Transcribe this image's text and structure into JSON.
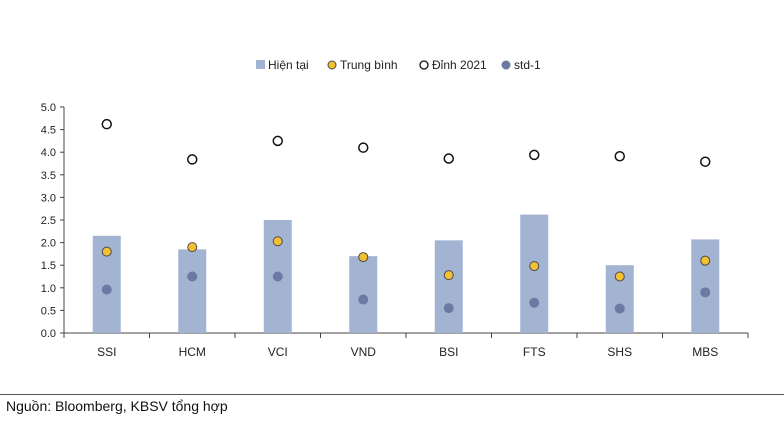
{
  "chart_data": {
    "type": "bar",
    "title": "",
    "xlabel": "",
    "ylabel": "",
    "ylim": [
      0,
      5
    ],
    "yticks": [
      "5.0",
      "4.5",
      "4.0",
      "3.5",
      "3.0",
      "2.5",
      "2.0",
      "1.5",
      "1.0",
      "0.5",
      "0.0"
    ],
    "categories": [
      "SSI",
      "HCM",
      "VCI",
      "VND",
      "BSI",
      "FTS",
      "SHS",
      "MBS"
    ],
    "legend_position": "top-center",
    "series": [
      {
        "name": "Hiện tại",
        "kind": "bar",
        "color": "#a3b3d2",
        "values": [
          2.15,
          1.85,
          2.5,
          1.7,
          2.05,
          2.62,
          1.5,
          2.07
        ]
      },
      {
        "name": "Trung bình",
        "kind": "marker",
        "color": "#f2c030",
        "values": [
          1.8,
          1.9,
          2.03,
          1.68,
          1.28,
          1.48,
          1.25,
          1.6
        ]
      },
      {
        "name": "Đỉnh 2021",
        "kind": "marker-hollow",
        "color": "#ffffff",
        "values": [
          4.62,
          3.84,
          4.25,
          4.1,
          3.86,
          3.94,
          3.91,
          3.79
        ]
      },
      {
        "name": "std-1",
        "kind": "marker",
        "color": "#6c7aa3",
        "values": [
          0.96,
          1.25,
          1.25,
          0.74,
          0.55,
          0.67,
          0.54,
          0.9
        ]
      }
    ]
  },
  "footer": {
    "source": "Nguồn: Bloomberg, KBSV tổng hợp"
  }
}
